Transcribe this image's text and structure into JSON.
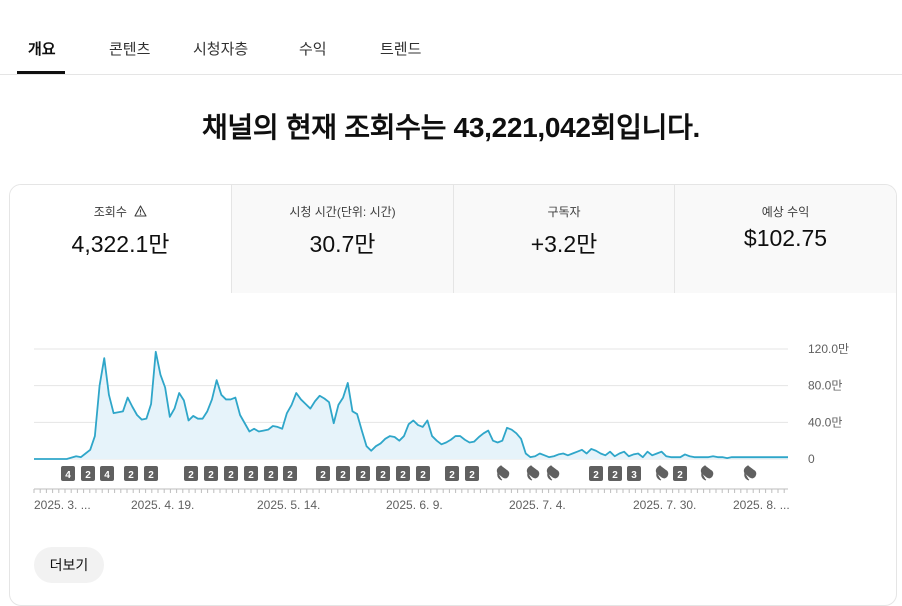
{
  "tabs": [
    {
      "label": "개요",
      "active": true
    },
    {
      "label": "콘텐츠"
    },
    {
      "label": "시청자층"
    },
    {
      "label": "수익"
    },
    {
      "label": "트렌드"
    }
  ],
  "headline": "채널의 현재 조회수는 43,221,042회입니다.",
  "metrics": [
    {
      "label": "조회수",
      "value": "4,322.1만",
      "warning_icon": "warning-icon"
    },
    {
      "label": "시청 시간(단위: 시간)",
      "value": "30.7만"
    },
    {
      "label": "구독자",
      "value": "+3.2만"
    },
    {
      "label": "예상 수익",
      "value": "$102.75"
    }
  ],
  "colors": {
    "line": "#2fa6c9",
    "area": "#e6f3fa",
    "grid": "#e5e5e5",
    "marker": "#606060"
  },
  "chart_data": {
    "type": "area",
    "y_ticks": [
      "120.0만",
      "80.0만",
      "40.0만",
      "0"
    ],
    "ylim": [
      0,
      1200000
    ],
    "x_tick_labels": [
      "2025. 3. ...",
      "2025. 4. 19.",
      "2025. 5. 14.",
      "2025. 6. 9.",
      "2025. 7. 4.",
      "2025. 7. 30.",
      "2025. 8. ..."
    ],
    "series": [
      {
        "values": [
          0,
          0,
          0,
          0,
          0,
          0,
          0,
          0,
          15000,
          30000,
          20000,
          60000,
          100000,
          250000,
          800000,
          1100000,
          700000,
          500000,
          510000,
          520000,
          670000,
          570000,
          480000,
          430000,
          440000,
          600000,
          1170000,
          920000,
          780000,
          460000,
          550000,
          720000,
          640000,
          420000,
          470000,
          440000,
          440000,
          520000,
          650000,
          860000,
          700000,
          650000,
          650000,
          670000,
          480000,
          390000,
          300000,
          330000,
          300000,
          310000,
          320000,
          360000,
          350000,
          330000,
          500000,
          590000,
          720000,
          650000,
          600000,
          550000,
          630000,
          690000,
          660000,
          620000,
          390000,
          590000,
          670000,
          830000,
          520000,
          490000,
          310000,
          140000,
          90000,
          140000,
          170000,
          220000,
          250000,
          240000,
          200000,
          250000,
          380000,
          420000,
          370000,
          350000,
          420000,
          250000,
          200000,
          160000,
          180000,
          210000,
          250000,
          250000,
          210000,
          180000,
          190000,
          240000,
          280000,
          310000,
          200000,
          180000,
          200000,
          340000,
          320000,
          280000,
          220000,
          60000,
          20000,
          30000,
          60000,
          40000,
          20000,
          30000,
          50000,
          60000,
          40000,
          60000,
          80000,
          100000,
          60000,
          110000,
          90000,
          60000,
          40000,
          80000,
          30000,
          60000,
          80000,
          30000,
          50000,
          60000,
          20000,
          80000,
          40000,
          60000,
          80000,
          30000,
          20000,
          20000,
          20000,
          50000,
          30000,
          20000,
          20000,
          20000,
          20000,
          30000,
          20000,
          20000,
          10000,
          20000,
          20000,
          20000,
          20000,
          20000,
          20000,
          20000,
          20000,
          20000,
          20000,
          20000,
          20000,
          20000
        ]
      }
    ],
    "markers": [
      {
        "label": "4"
      },
      {
        "label": "2"
      },
      {
        "label": "4"
      },
      {
        "label": "2"
      },
      {
        "label": "2"
      },
      {
        "label": "2"
      },
      {
        "label": "2"
      },
      {
        "label": "2"
      },
      {
        "label": "2"
      },
      {
        "label": "2"
      },
      {
        "label": "2"
      },
      {
        "label": "2"
      },
      {
        "label": "2"
      },
      {
        "label": "2"
      },
      {
        "label": "2"
      },
      {
        "label": "2"
      },
      {
        "label": "2"
      },
      {
        "label": "2"
      },
      {
        "label": "2"
      },
      {
        "icon": "shorts-icon"
      },
      {
        "icon": "shorts-icon"
      },
      {
        "icon": "shorts-icon"
      },
      {
        "label": "2"
      },
      {
        "label": "2"
      },
      {
        "label": "3"
      },
      {
        "icon": "shorts-icon"
      },
      {
        "label": "2"
      },
      {
        "icon": "shorts-icon"
      },
      {
        "icon": "shorts-icon"
      }
    ]
  },
  "more_button": "더보기"
}
